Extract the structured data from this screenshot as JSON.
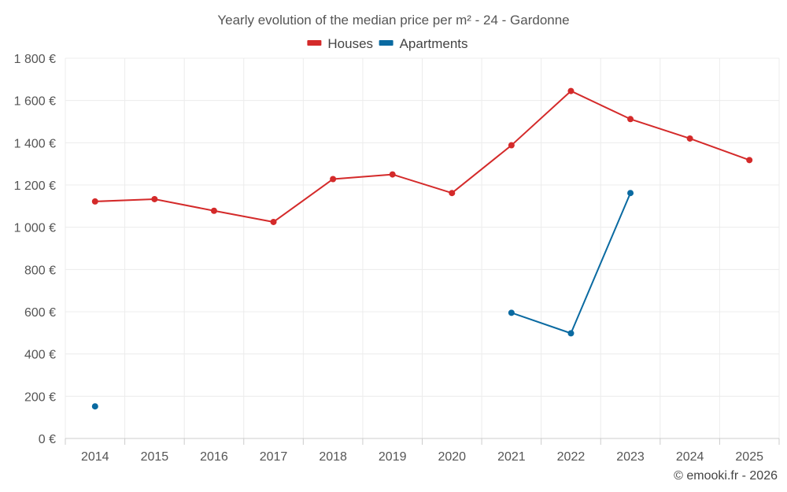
{
  "chart_data": {
    "type": "line",
    "title": "Yearly evolution of the median price per m² - 24 - Gardonne",
    "categories": [
      "2014",
      "2015",
      "2016",
      "2017",
      "2018",
      "2019",
      "2020",
      "2021",
      "2022",
      "2023",
      "2024",
      "2025"
    ],
    "series": [
      {
        "name": "Houses",
        "color": "#d42a2a",
        "values": [
          1122,
          1133,
          1078,
          1025,
          1228,
          1250,
          1162,
          1388,
          1645,
          1512,
          1420,
          1318
        ]
      },
      {
        "name": "Apartments",
        "color": "#0a6aa1",
        "values": [
          152,
          null,
          null,
          null,
          null,
          null,
          null,
          595,
          498,
          1162,
          null,
          null
        ]
      }
    ],
    "ylim": [
      0,
      1800
    ],
    "yticks": [
      0,
      200,
      400,
      600,
      800,
      1000,
      1200,
      1400,
      1600,
      1800
    ],
    "ytick_labels": [
      "0 €",
      "200 €",
      "400 €",
      "600 €",
      "800 €",
      "1 000 €",
      "1 200 €",
      "1 400 €",
      "1 600 €",
      "1 800 €"
    ],
    "grid": true,
    "legend_position": "top-center"
  },
  "credit": "© emooki.fr - 2026"
}
